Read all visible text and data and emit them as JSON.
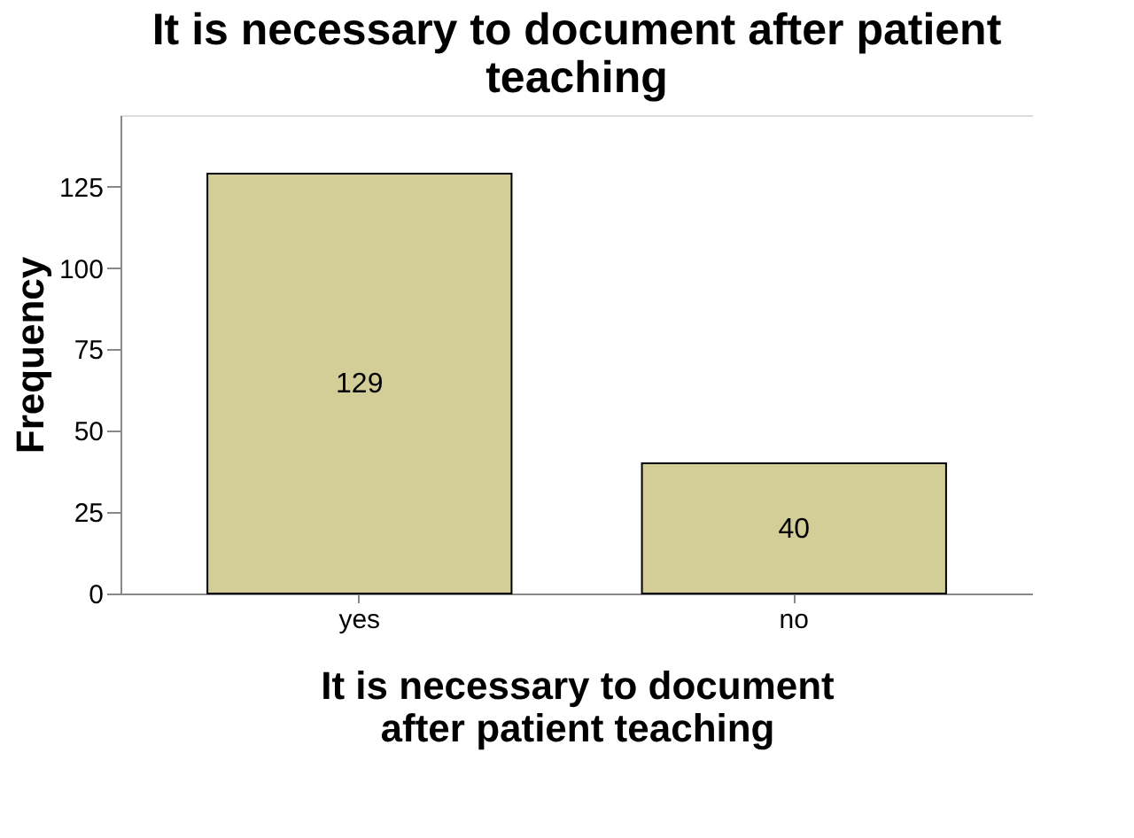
{
  "chart_data": {
    "type": "bar",
    "title": "It is necessary to document after patient teaching",
    "xlabel": "It is necessary to document after patient teaching",
    "ylabel": "Frequency",
    "categories": [
      "yes",
      "no"
    ],
    "values": [
      129,
      40
    ],
    "color": "#d3cd98",
    "ylim": [
      0,
      147
    ],
    "yticks": [
      0,
      25,
      50,
      75,
      100,
      125
    ],
    "grid": false,
    "data_labels": true
  }
}
